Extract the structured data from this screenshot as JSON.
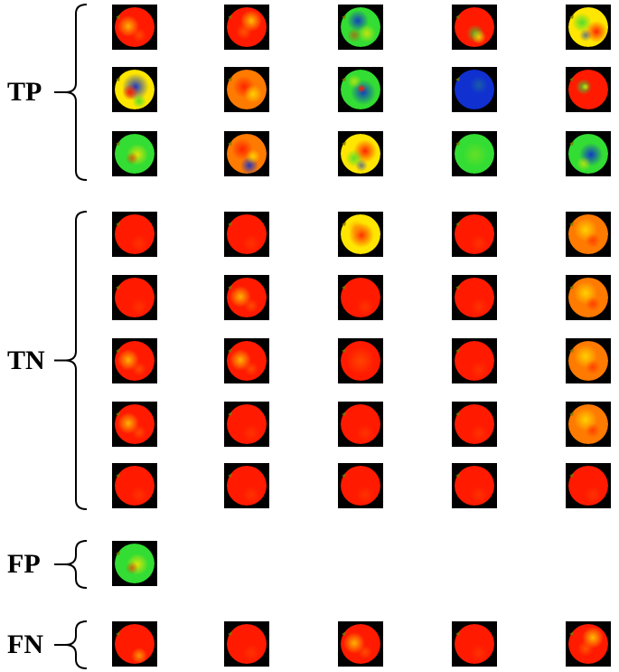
{
  "groups": [
    {
      "label": "TP",
      "rows": [
        [
          "red-yellow",
          "red-yellow-2",
          "blue-green-mix",
          "red-green-band",
          "red-green-split"
        ],
        [
          "blue-red-center",
          "red-yellow-swirl",
          "green-blue-ring",
          "blue-full",
          "red-green-spot"
        ],
        [
          "green-yellow-swirl",
          "red-yellow-blue",
          "red-green-swirl",
          "green-full",
          "green-blue-center"
        ]
      ]
    },
    {
      "label": "TN",
      "rows": [
        [
          "red",
          "red",
          "yellow-red",
          "red",
          "orange-yellow"
        ],
        [
          "red",
          "red-yellow",
          "red",
          "red",
          "orange-yellow"
        ],
        [
          "red-yellow",
          "red-yellow",
          "red-orange",
          "red",
          "orange-yellow"
        ],
        [
          "red-yellow",
          "red",
          "red",
          "red",
          "orange-yellow"
        ],
        [
          "red",
          "red",
          "red",
          "red",
          "red"
        ]
      ]
    },
    {
      "label": "FP",
      "rows": [
        [
          "green-yellow-swirl"
        ]
      ]
    },
    {
      "label": "FN",
      "rows": [
        [
          "red-yellow-edge",
          "red",
          "red-yellow",
          "red",
          "red-yellow-2"
        ]
      ]
    }
  ],
  "colors": {
    "red": "#ff1a00",
    "orange": "#ff7a00",
    "yellow": "#ffe600",
    "green": "#33dd33",
    "blue": "#1030d0",
    "tile_background": "#000000"
  }
}
